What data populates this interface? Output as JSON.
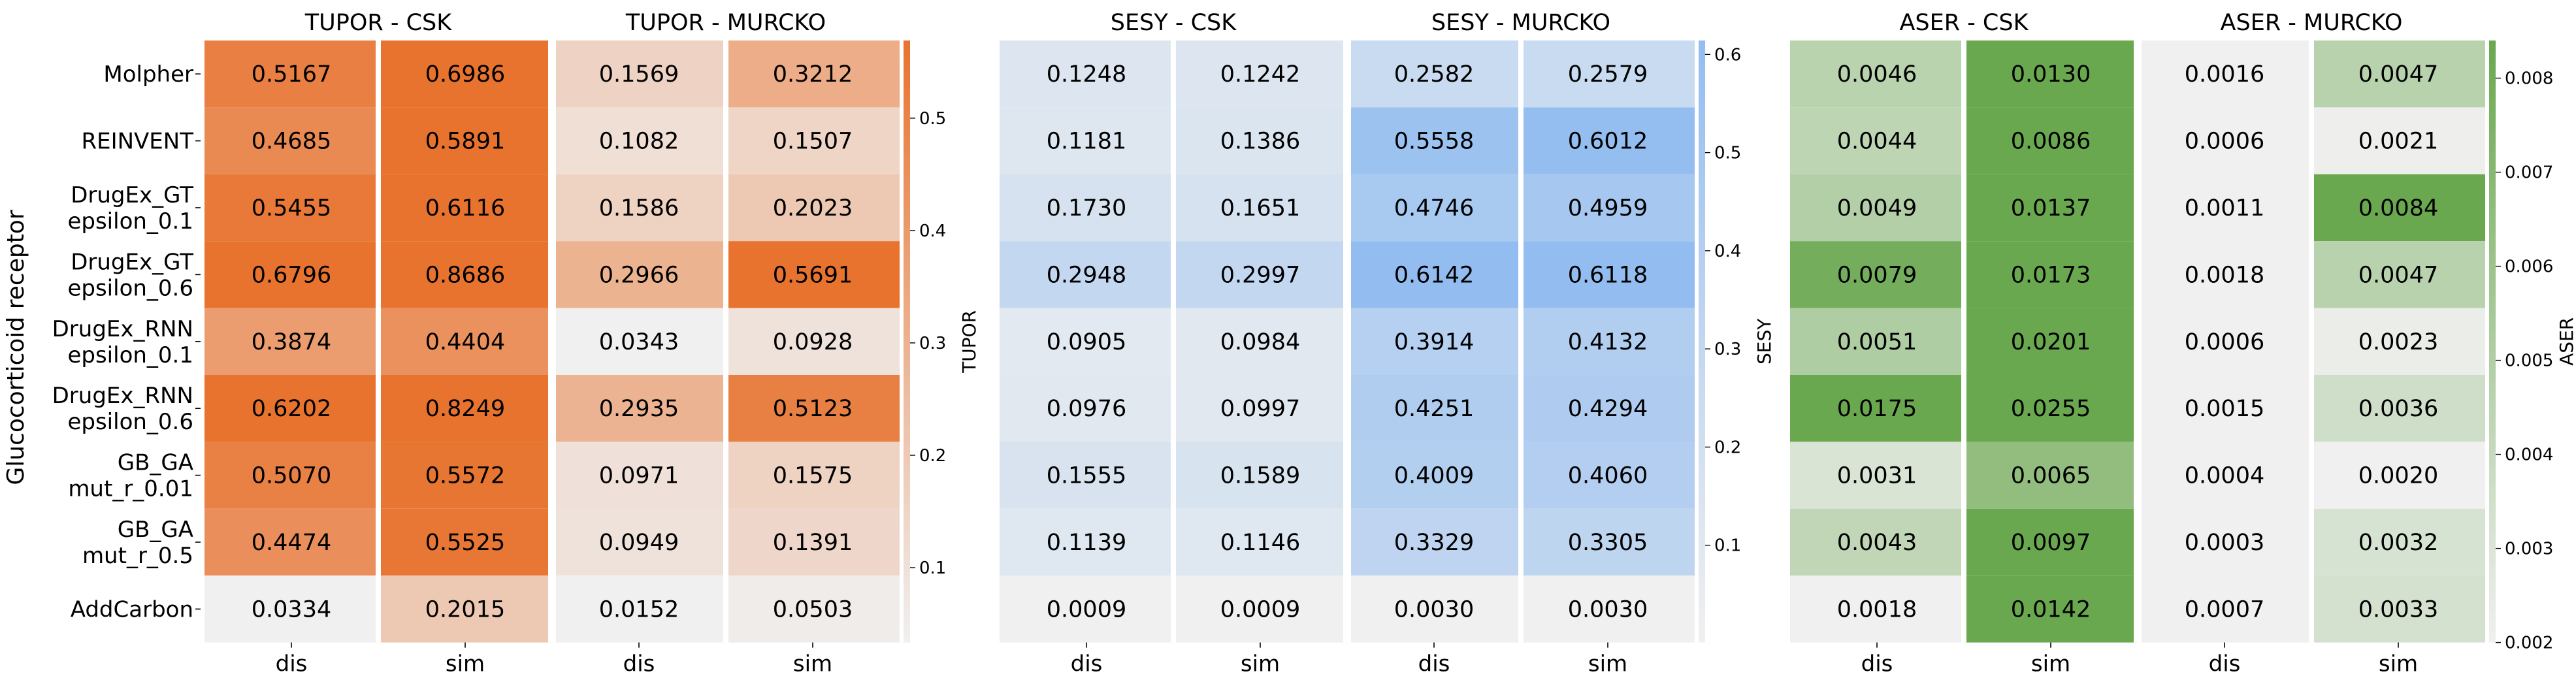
{
  "y_axis_title": "Glucocorticoid receptor",
  "row_labels": [
    [
      "Molpher"
    ],
    [
      "REINVENT"
    ],
    [
      "DrugEx_GT",
      "epsilon_0.1"
    ],
    [
      "DrugEx_GT",
      "epsilon_0.6"
    ],
    [
      "DrugEx_RNN",
      "epsilon_0.1"
    ],
    [
      "DrugEx_RNN",
      "epsilon_0.6"
    ],
    [
      "GB_GA",
      "mut_r_0.01"
    ],
    [
      "GB_GA",
      "mut_r_0.5"
    ],
    [
      "AddCarbon"
    ]
  ],
  "x_tick_labels": [
    "dis",
    "sim",
    "dis",
    "sim"
  ],
  "chart_data": [
    {
      "type": "heatmap",
      "metric": "TUPOR",
      "colorbar_label": "TUPOR",
      "color_low": "#f0f0f0",
      "color_high": "#e8732f",
      "vmin": 0.0334,
      "vmax": 0.5691,
      "colorbar_range": [
        0.0334,
        0.5691
      ],
      "colorbar_ticks": [
        0.1,
        0.2,
        0.3,
        0.4,
        0.5
      ],
      "colorbar_tick_labels": [
        "0.1",
        "0.2",
        "0.3",
        "0.4",
        "0.5"
      ],
      "group_titles": [
        "TUPOR - CSK",
        "TUPOR - MURCKO"
      ],
      "columns": [
        "dis",
        "sim",
        "dis",
        "sim"
      ],
      "values": [
        [
          0.5167,
          0.6986,
          0.1569,
          0.3212
        ],
        [
          0.4685,
          0.5891,
          0.1082,
          0.1507
        ],
        [
          0.5455,
          0.6116,
          0.1586,
          0.2023
        ],
        [
          0.6796,
          0.8686,
          0.2966,
          0.5691
        ],
        [
          0.3874,
          0.4404,
          0.0343,
          0.0928
        ],
        [
          0.6202,
          0.8249,
          0.2935,
          0.5123
        ],
        [
          0.507,
          0.5572,
          0.0971,
          0.1575
        ],
        [
          0.4474,
          0.5525,
          0.0949,
          0.1391
        ],
        [
          0.0334,
          0.2015,
          0.0152,
          0.0503
        ]
      ],
      "labels": [
        [
          "0.5167",
          "0.6986",
          "0.1569",
          "0.3212"
        ],
        [
          "0.4685",
          "0.5891",
          "0.1082",
          "0.1507"
        ],
        [
          "0.5455",
          "0.6116",
          "0.1586",
          "0.2023"
        ],
        [
          "0.6796",
          "0.8686",
          "0.2966",
          "0.5691"
        ],
        [
          "0.3874",
          "0.4404",
          "0.0343",
          "0.0928"
        ],
        [
          "0.6202",
          "0.8249",
          "0.2935",
          "0.5123"
        ],
        [
          "0.5070",
          "0.5572",
          "0.0971",
          "0.1575"
        ],
        [
          "0.4474",
          "0.5525",
          "0.0949",
          "0.1391"
        ],
        [
          "0.0334",
          "0.2015",
          "0.0152",
          "0.0503"
        ]
      ]
    },
    {
      "type": "heatmap",
      "metric": "SESY",
      "colorbar_label": "SESY",
      "color_low": "#f0f0f0",
      "color_high": "#93bdf0",
      "vmin": 0.0009,
      "vmax": 0.6142,
      "colorbar_range": [
        0.0009,
        0.6142
      ],
      "colorbar_ticks": [
        0.1,
        0.2,
        0.3,
        0.4,
        0.5,
        0.6
      ],
      "colorbar_tick_labels": [
        "0.1",
        "0.2",
        "0.3",
        "0.4",
        "0.5",
        "0.6"
      ],
      "group_titles": [
        "SESY - CSK",
        "SESY - MURCKO"
      ],
      "columns": [
        "dis",
        "sim",
        "dis",
        "sim"
      ],
      "values": [
        [
          0.1248,
          0.1242,
          0.2582,
          0.2579
        ],
        [
          0.1181,
          0.1386,
          0.5558,
          0.6012
        ],
        [
          0.173,
          0.1651,
          0.4746,
          0.4959
        ],
        [
          0.2948,
          0.2997,
          0.6142,
          0.6118
        ],
        [
          0.0905,
          0.0984,
          0.3914,
          0.4132
        ],
        [
          0.0976,
          0.0997,
          0.4251,
          0.4294
        ],
        [
          0.1555,
          0.1589,
          0.4009,
          0.406
        ],
        [
          0.1139,
          0.1146,
          0.3329,
          0.3305
        ],
        [
          0.0009,
          0.0009,
          0.003,
          0.003
        ]
      ],
      "labels": [
        [
          "0.1248",
          "0.1242",
          "0.2582",
          "0.2579"
        ],
        [
          "0.1181",
          "0.1386",
          "0.5558",
          "0.6012"
        ],
        [
          "0.1730",
          "0.1651",
          "0.4746",
          "0.4959"
        ],
        [
          "0.2948",
          "0.2997",
          "0.6142",
          "0.6118"
        ],
        [
          "0.0905",
          "0.0984",
          "0.3914",
          "0.4132"
        ],
        [
          "0.0976",
          "0.0997",
          "0.4251",
          "0.4294"
        ],
        [
          "0.1555",
          "0.1589",
          "0.4009",
          "0.4060"
        ],
        [
          "0.1139",
          "0.1146",
          "0.3329",
          "0.3305"
        ],
        [
          "0.0009",
          "0.0009",
          "0.0030",
          "0.0030"
        ]
      ]
    },
    {
      "type": "heatmap",
      "metric": "ASER",
      "colorbar_label": "ASER",
      "color_low": "#f0f0f0",
      "color_high": "#6aa84f",
      "vmin": 0.002,
      "vmax": 0.0084,
      "colorbar_range": [
        0.002,
        0.0084
      ],
      "colorbar_ticks": [
        0.002,
        0.003,
        0.004,
        0.005,
        0.006,
        0.007,
        0.008
      ],
      "colorbar_tick_labels": [
        "0.002",
        "0.003",
        "0.004",
        "0.005",
        "0.006",
        "0.007",
        "0.008"
      ],
      "group_titles": [
        "ASER - CSK",
        "ASER - MURCKO"
      ],
      "columns": [
        "dis",
        "sim",
        "dis",
        "sim"
      ],
      "values": [
        [
          0.0046,
          0.013,
          0.0016,
          0.0047
        ],
        [
          0.0044,
          0.0086,
          0.0006,
          0.0021
        ],
        [
          0.0049,
          0.0137,
          0.0011,
          0.0084
        ],
        [
          0.0079,
          0.0173,
          0.0018,
          0.0047
        ],
        [
          0.0051,
          0.0201,
          0.0006,
          0.0023
        ],
        [
          0.0175,
          0.0255,
          0.0015,
          0.0036
        ],
        [
          0.0031,
          0.0065,
          0.0004,
          0.002
        ],
        [
          0.0043,
          0.0097,
          0.0003,
          0.0032
        ],
        [
          0.0018,
          0.0142,
          0.0007,
          0.0033
        ]
      ],
      "labels": [
        [
          "0.0046",
          "0.0130",
          "0.0016",
          "0.0047"
        ],
        [
          "0.0044",
          "0.0086",
          "0.0006",
          "0.0021"
        ],
        [
          "0.0049",
          "0.0137",
          "0.0011",
          "0.0084"
        ],
        [
          "0.0079",
          "0.0173",
          "0.0018",
          "0.0047"
        ],
        [
          "0.0051",
          "0.0201",
          "0.0006",
          "0.0023"
        ],
        [
          "0.0175",
          "0.0255",
          "0.0015",
          "0.0036"
        ],
        [
          "0.0031",
          "0.0065",
          "0.0004",
          "0.0020"
        ],
        [
          "0.0043",
          "0.0097",
          "0.0003",
          "0.0032"
        ],
        [
          "0.0018",
          "0.0142",
          "0.0007",
          "0.0033"
        ]
      ]
    }
  ]
}
